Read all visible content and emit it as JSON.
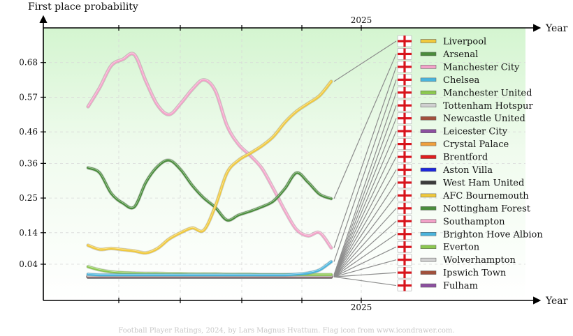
{
  "chart_data": {
    "type": "line",
    "ylabel": "First place probability",
    "xlabel": "Year",
    "x_tick_top": "2025",
    "x_tick_bottom": "2025",
    "y_ticks": [
      "0.04",
      "0.14",
      "0.25",
      "0.36",
      "0.46",
      "0.57",
      "0.68"
    ],
    "y_tick_values": [
      0.04,
      0.14,
      0.25,
      0.36,
      0.46,
      0.57,
      0.68
    ],
    "ylim": [
      -0.075,
      0.79
    ],
    "x_count": 22,
    "grid": true,
    "legend_placement": "right",
    "footer": "Football Player Ratings, 2024, by Lars Magnus Hvattum. Flag icon from www.icondrawer.com.",
    "series": [
      {
        "name": "Liverpool",
        "color": "#f0c93c",
        "values": [
          0.1,
          0.087,
          0.09,
          0.086,
          0.082,
          0.076,
          0.09,
          0.12,
          0.14,
          0.155,
          0.148,
          0.225,
          0.33,
          0.37,
          0.392,
          0.415,
          0.445,
          0.49,
          0.525,
          0.55,
          0.575,
          0.62
        ]
      },
      {
        "name": "Arsenal",
        "color": "#4a8c3c",
        "values": [
          0.346,
          0.33,
          0.265,
          0.234,
          0.222,
          0.3,
          0.35,
          0.37,
          0.34,
          0.29,
          0.25,
          0.22,
          0.18,
          0.196,
          0.208,
          0.222,
          0.24,
          0.28,
          0.33,
          0.3,
          0.262,
          0.248
        ]
      },
      {
        "name": "Manchester City",
        "color": "#f2a2c8",
        "values": [
          0.54,
          0.6,
          0.67,
          0.69,
          0.705,
          0.62,
          0.545,
          0.515,
          0.55,
          0.595,
          0.625,
          0.59,
          0.48,
          0.42,
          0.385,
          0.345,
          0.28,
          0.21,
          0.15,
          0.13,
          0.14,
          0.092
        ]
      },
      {
        "name": "Chelsea",
        "color": "#4ab4dc",
        "values": [
          0.008,
          0.006,
          0.006,
          0.006,
          0.006,
          0.006,
          0.006,
          0.006,
          0.006,
          0.006,
          0.006,
          0.006,
          0.006,
          0.006,
          0.006,
          0.006,
          0.006,
          0.006,
          0.008,
          0.012,
          0.022,
          0.048
        ]
      },
      {
        "name": "Manchester United",
        "color": "#8cc850",
        "values": [
          0.032,
          0.022,
          0.016,
          0.013,
          0.012,
          0.011,
          0.011,
          0.01,
          0.01,
          0.009,
          0.009,
          0.009,
          0.008,
          0.008,
          0.008,
          0.007,
          0.007,
          0.007,
          0.007,
          0.007,
          0.007,
          0.007
        ]
      },
      {
        "name": "Tottenham Hotspur",
        "color": "#d0d0d0",
        "values": [
          0.004,
          0.004,
          0.004,
          0.004,
          0.004,
          0.004,
          0.004,
          0.004,
          0.004,
          0.004,
          0.004,
          0.004,
          0.004,
          0.004,
          0.004,
          0.004,
          0.004,
          0.004,
          0.004,
          0.004,
          0.004,
          0.004
        ]
      },
      {
        "name": "Newcastle United",
        "color": "#a0503c",
        "values": [
          0.002,
          0.002,
          0.002,
          0.002,
          0.002,
          0.002,
          0.002,
          0.002,
          0.002,
          0.002,
          0.002,
          0.002,
          0.002,
          0.002,
          0.002,
          0.002,
          0.002,
          0.002,
          0.002,
          0.002,
          0.002,
          0.002
        ]
      },
      {
        "name": "Leicester City",
        "color": "#8c50a0",
        "values": [
          0.001,
          0.001,
          0.001,
          0.001,
          0.001,
          0.001,
          0.001,
          0.001,
          0.001,
          0.001,
          0.001,
          0.001,
          0.001,
          0.001,
          0.001,
          0.001,
          0.001,
          0.001,
          0.001,
          0.001,
          0.001,
          0.001
        ]
      },
      {
        "name": "Crystal Palace",
        "color": "#f0a03c",
        "values": [
          0.001,
          0.001,
          0.001,
          0.001,
          0.001,
          0.001,
          0.001,
          0.001,
          0.001,
          0.001,
          0.001,
          0.001,
          0.001,
          0.001,
          0.001,
          0.001,
          0.001,
          0.001,
          0.001,
          0.001,
          0.001,
          0.001
        ]
      },
      {
        "name": "Brentford",
        "color": "#e01e1e",
        "values": [
          0.001,
          0.001,
          0.001,
          0.001,
          0.001,
          0.001,
          0.001,
          0.001,
          0.001,
          0.001,
          0.001,
          0.001,
          0.001,
          0.001,
          0.001,
          0.001,
          0.001,
          0.001,
          0.001,
          0.001,
          0.001,
          0.001
        ]
      },
      {
        "name": "Aston Villa",
        "color": "#1e28dc",
        "values": [
          0.001,
          0.001,
          0.001,
          0.001,
          0.001,
          0.001,
          0.001,
          0.001,
          0.001,
          0.001,
          0.001,
          0.001,
          0.001,
          0.001,
          0.001,
          0.001,
          0.001,
          0.001,
          0.001,
          0.001,
          0.001,
          0.001
        ]
      },
      {
        "name": "West Ham United",
        "color": "#3c3c3c",
        "values": [
          0.001,
          0.001,
          0.001,
          0.001,
          0.001,
          0.001,
          0.001,
          0.001,
          0.001,
          0.001,
          0.001,
          0.001,
          0.001,
          0.001,
          0.001,
          0.001,
          0.001,
          0.001,
          0.001,
          0.001,
          0.001,
          0.001
        ]
      },
      {
        "name": "AFC Bournemouth",
        "color": "#f0c93c",
        "values": [
          0.0,
          0.0,
          0.0,
          0.0,
          0.0,
          0.0,
          0.0,
          0.0,
          0.0,
          0.0,
          0.0,
          0.0,
          0.0,
          0.0,
          0.0,
          0.0,
          0.0,
          0.0,
          0.0,
          0.0,
          0.0,
          0.0
        ]
      },
      {
        "name": "Nottingham Forest",
        "color": "#4a8c3c",
        "values": [
          0.0,
          0.0,
          0.0,
          0.0,
          0.0,
          0.0,
          0.0,
          0.0,
          0.0,
          0.0,
          0.0,
          0.0,
          0.0,
          0.0,
          0.0,
          0.0,
          0.0,
          0.0,
          0.0,
          0.0,
          0.0,
          0.0
        ]
      },
      {
        "name": "Southampton",
        "color": "#f2a2c8",
        "values": [
          0.0,
          0.0,
          0.0,
          0.0,
          0.0,
          0.0,
          0.0,
          0.0,
          0.0,
          0.0,
          0.0,
          0.0,
          0.0,
          0.0,
          0.0,
          0.0,
          0.0,
          0.0,
          0.0,
          0.0,
          0.0,
          0.0
        ]
      },
      {
        "name": "Brighton Hove Albion",
        "color": "#4ab4dc",
        "values": [
          0.0,
          0.0,
          0.0,
          0.0,
          0.0,
          0.0,
          0.0,
          0.0,
          0.0,
          0.0,
          0.0,
          0.0,
          0.0,
          0.0,
          0.0,
          0.0,
          0.0,
          0.0,
          0.0,
          0.0,
          0.0,
          0.0
        ]
      },
      {
        "name": "Everton",
        "color": "#8cc850",
        "values": [
          0.0,
          0.0,
          0.0,
          0.0,
          0.0,
          0.0,
          0.0,
          0.0,
          0.0,
          0.0,
          0.0,
          0.0,
          0.0,
          0.0,
          0.0,
          0.0,
          0.0,
          0.0,
          0.0,
          0.0,
          0.0,
          0.0
        ]
      },
      {
        "name": "Wolverhampton",
        "color": "#d0d0d0",
        "values": [
          0.0,
          0.0,
          0.0,
          0.0,
          0.0,
          0.0,
          0.0,
          0.0,
          0.0,
          0.0,
          0.0,
          0.0,
          0.0,
          0.0,
          0.0,
          0.0,
          0.0,
          0.0,
          0.0,
          0.0,
          0.0,
          0.0
        ]
      },
      {
        "name": "Ipswich Town",
        "color": "#a0503c",
        "values": [
          0.0,
          0.0,
          0.0,
          0.0,
          0.0,
          0.0,
          0.0,
          0.0,
          0.0,
          0.0,
          0.0,
          0.0,
          0.0,
          0.0,
          0.0,
          0.0,
          0.0,
          0.0,
          0.0,
          0.0,
          0.0,
          0.0
        ]
      },
      {
        "name": "Fulham",
        "color": "#8c50a0",
        "values": [
          0.0,
          0.0,
          0.0,
          0.0,
          0.0,
          0.0,
          0.0,
          0.0,
          0.0,
          0.0,
          0.0,
          0.0,
          0.0,
          0.0,
          0.0,
          0.0,
          0.0,
          0.0,
          0.0,
          0.0,
          0.0,
          0.0
        ]
      }
    ]
  },
  "legend_icon": "england-flag-icon"
}
